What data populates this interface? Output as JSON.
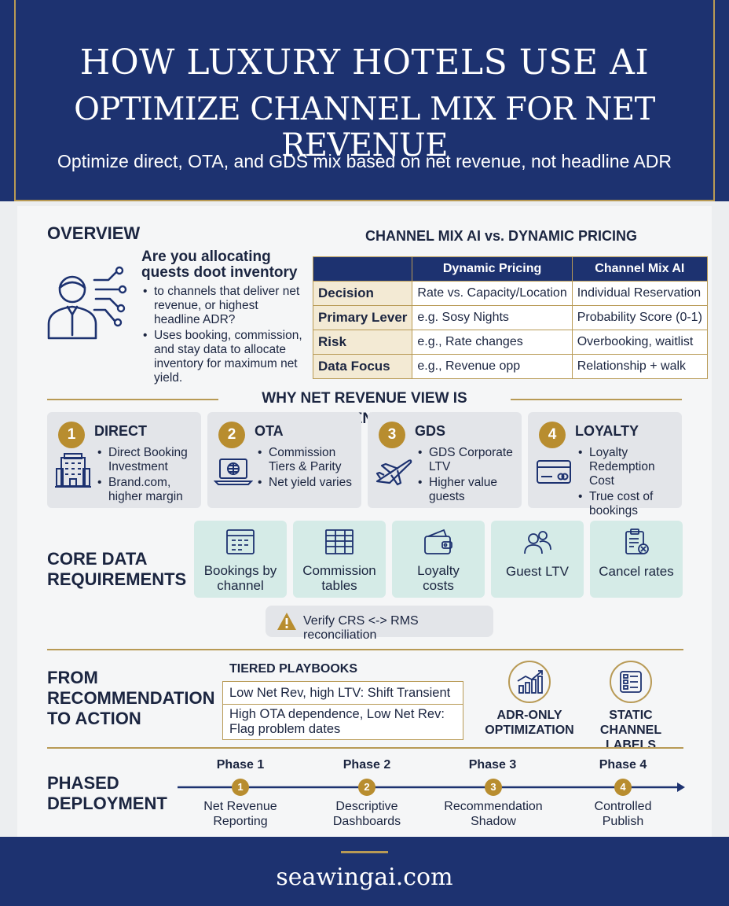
{
  "header": {
    "title_line1": "HOW LUXURY HOTELS USE AI",
    "title_line2": "OPTIMIZE CHANNEL MIX FOR NET REVENUE",
    "subtitle": "Optimize direct, OTA, and GDS mix based on net revenue, not headline ADR"
  },
  "overview": {
    "title": "OVERVIEW",
    "question_line1": "Are you allocating",
    "question_line2": "quests doot inventory",
    "bullets": [
      "to channels that deliver net revenue, or highest headline ADR?",
      "Uses booking, commission, and stay data to allocate inventory for maximum net yield."
    ],
    "icon": "person-network-icon"
  },
  "comparison": {
    "title": "CHANNEL MIX AI vs. DYNAMIC PRICING",
    "columns": [
      "",
      "Dynamic Pricing",
      "Channel Mix AI"
    ],
    "rows": [
      {
        "label": "Decision",
        "dynamic": "Rate vs. Capacity/Location",
        "ai": "Individual Reservation"
      },
      {
        "label": "Primary Lever",
        "dynamic": "e.g. Sosy Nights",
        "ai": "Probability Score (0-1)"
      },
      {
        "label": "Risk",
        "dynamic": "e.g., Rate changes",
        "ai": "Overbooking, waitlist"
      },
      {
        "label": "Data Focus",
        "dynamic": "e.g., Revenue opp",
        "ai": "Relationship + walk"
      }
    ]
  },
  "why": {
    "title": "WHY NET REVENUE VIEW IS ESSENTIAL",
    "cards": [
      {
        "num": "1",
        "title": "DIRECT",
        "icon": "hotel-building-icon",
        "bullets": [
          "Direct Booking Investment",
          "Brand.com, higher margin"
        ]
      },
      {
        "num": "2",
        "title": "OTA",
        "icon": "laptop-globe-icon",
        "bullets": [
          "Commission Tiers & Parity",
          "Net yield varies"
        ]
      },
      {
        "num": "3",
        "title": "GDS",
        "icon": "airplane-icon",
        "bullets": [
          "GDS Corporate LTV",
          "Higher value guests"
        ]
      },
      {
        "num": "4",
        "title": "LOYALTY",
        "icon": "credit-card-icon",
        "bullets": [
          "Loyalty Redemption Cost",
          "True cost of bookings"
        ]
      }
    ]
  },
  "core": {
    "title_line1": "CORE DATA",
    "title_line2": "REQUIREMENTS",
    "items": [
      {
        "label_line1": "Bookings by",
        "label_line2": "channel",
        "icon": "calendar-grid-icon"
      },
      {
        "label_line1": "Commission",
        "label_line2": "tables",
        "icon": "table-icon"
      },
      {
        "label_line1": "Loyalty",
        "label_line2": "costs",
        "icon": "wallet-icon"
      },
      {
        "label_line1": "Guest LTV",
        "label_line2": "",
        "icon": "guests-icon"
      },
      {
        "label_line1": "Cancel rates",
        "label_line2": "",
        "icon": "clipboard-cancel-icon"
      }
    ],
    "verify": "Verify CRS <-> RMS reconciliation"
  },
  "action": {
    "title_line1": "FROM",
    "title_line2": "RECOMMENDATION",
    "title_line3": "TO ACTION",
    "playbooks_title": "TIERED PLAYBOOKS",
    "playbook1": "Low Net Rev, high LTV: Shift Transient",
    "playbook2_line1": "High OTA dependence, Low Net Rev:",
    "playbook2_line2": "Flag problem dates",
    "avoid1_line1": "ADR-ONLY",
    "avoid1_line2": "OPTIMIZATION",
    "avoid2_line1": "STATIC CHANNEL",
    "avoid2_line2": "LABELS"
  },
  "deployment": {
    "title_line1": "PHASED",
    "title_line2": "DEPLOYMENT",
    "phases": [
      {
        "label": "Phase 1",
        "num": "1",
        "desc_line1": "Net Revenue",
        "desc_line2": "Reporting"
      },
      {
        "label": "Phase 2",
        "num": "2",
        "desc_line1": "Descriptive",
        "desc_line2": "Dashboards"
      },
      {
        "label": "Phase 3",
        "num": "3",
        "desc_line1": "Recommendation",
        "desc_line2": "Shadow"
      },
      {
        "label": "Phase 4",
        "num": "4",
        "desc_line1": "Controlled",
        "desc_line2": "Publish"
      }
    ]
  },
  "footer": {
    "site": "seawingai.com"
  },
  "colors": {
    "navy": "#1d3270",
    "gold": "#b89a55",
    "teal": "#d5ebe7",
    "card": "#e3e5e9"
  }
}
